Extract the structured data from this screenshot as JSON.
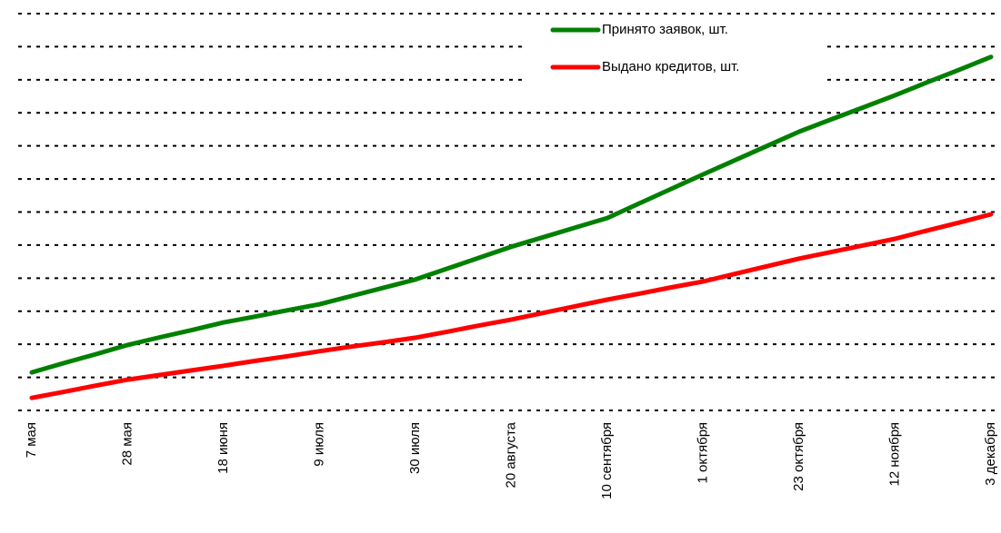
{
  "chart_data": {
    "type": "line",
    "categories": [
      "7 мая",
      null,
      null,
      "28 мая",
      null,
      null,
      "18 июня",
      null,
      null,
      "9 июля",
      null,
      null,
      "30 июля",
      null,
      null,
      "20 августа",
      null,
      null,
      "10 сентября",
      null,
      null,
      "1 октября",
      null,
      null,
      "23 октября",
      null,
      null,
      "12 ноября",
      null,
      null,
      "3 декабря"
    ],
    "series": [
      {
        "name": "Принято заявок, шт.",
        "color": "#008000",
        "values": [
          1.15,
          1.43,
          1.7,
          1.98,
          2.21,
          2.43,
          2.66,
          2.84,
          3.03,
          3.21,
          3.46,
          3.71,
          3.96,
          4.29,
          4.62,
          4.95,
          5.24,
          5.53,
          5.82,
          6.26,
          6.7,
          7.14,
          7.57,
          8.0,
          8.43,
          8.8,
          9.16,
          9.53,
          9.92,
          10.3,
          10.69
        ]
      },
      {
        "name": "Выдано кредитов, шт.",
        "color": "#ff0000",
        "values": [
          0.38,
          0.56,
          0.75,
          0.93,
          1.07,
          1.21,
          1.35,
          1.5,
          1.64,
          1.79,
          1.93,
          2.06,
          2.2,
          2.38,
          2.57,
          2.75,
          2.95,
          3.15,
          3.35,
          3.53,
          3.72,
          3.9,
          4.13,
          4.36,
          4.59,
          4.79,
          4.99,
          5.19,
          5.44,
          5.68,
          5.93
        ]
      }
    ],
    "ylim": [
      0,
      12
    ],
    "yticks": [
      0,
      1,
      2,
      3,
      4,
      5,
      6,
      7,
      8,
      9,
      10,
      11,
      12
    ],
    "grid": true,
    "legend": "upper-right"
  }
}
